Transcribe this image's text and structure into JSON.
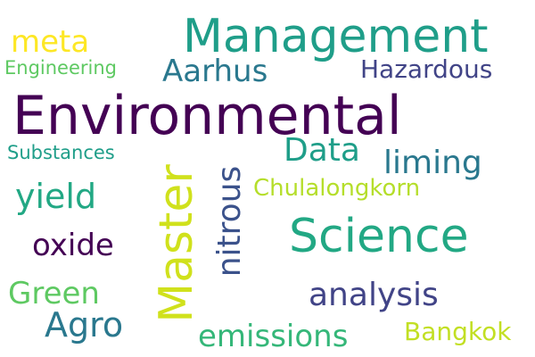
{
  "words": [
    {
      "text": "Environmental",
      "color": "#440154"
    },
    {
      "text": "Management",
      "color": "#1f9e89"
    },
    {
      "text": "Science",
      "color": "#22a884"
    },
    {
      "text": "Master",
      "color": "#d0e11c"
    },
    {
      "text": "meta",
      "color": "#fde725"
    },
    {
      "text": "Aarhus",
      "color": "#2a788e"
    },
    {
      "text": "Hazardous",
      "color": "#414487"
    },
    {
      "text": "Engineering",
      "color": "#5ec962"
    },
    {
      "text": "Substances",
      "color": "#1f9e89"
    },
    {
      "text": "Data",
      "color": "#1f9e89"
    },
    {
      "text": "liming",
      "color": "#2a788e"
    },
    {
      "text": "nitrous",
      "color": "#3b528b"
    },
    {
      "text": "Chulalongkorn",
      "color": "#b5de2b"
    },
    {
      "text": "yield",
      "color": "#22a884"
    },
    {
      "text": "oxide",
      "color": "#440154"
    },
    {
      "text": "Green",
      "color": "#5ec962"
    },
    {
      "text": "analysis",
      "color": "#414487"
    },
    {
      "text": "Agro",
      "color": "#2a788e"
    },
    {
      "text": "emissions",
      "color": "#35b779"
    },
    {
      "text": "Bangkok",
      "color": "#c2df23"
    }
  ]
}
